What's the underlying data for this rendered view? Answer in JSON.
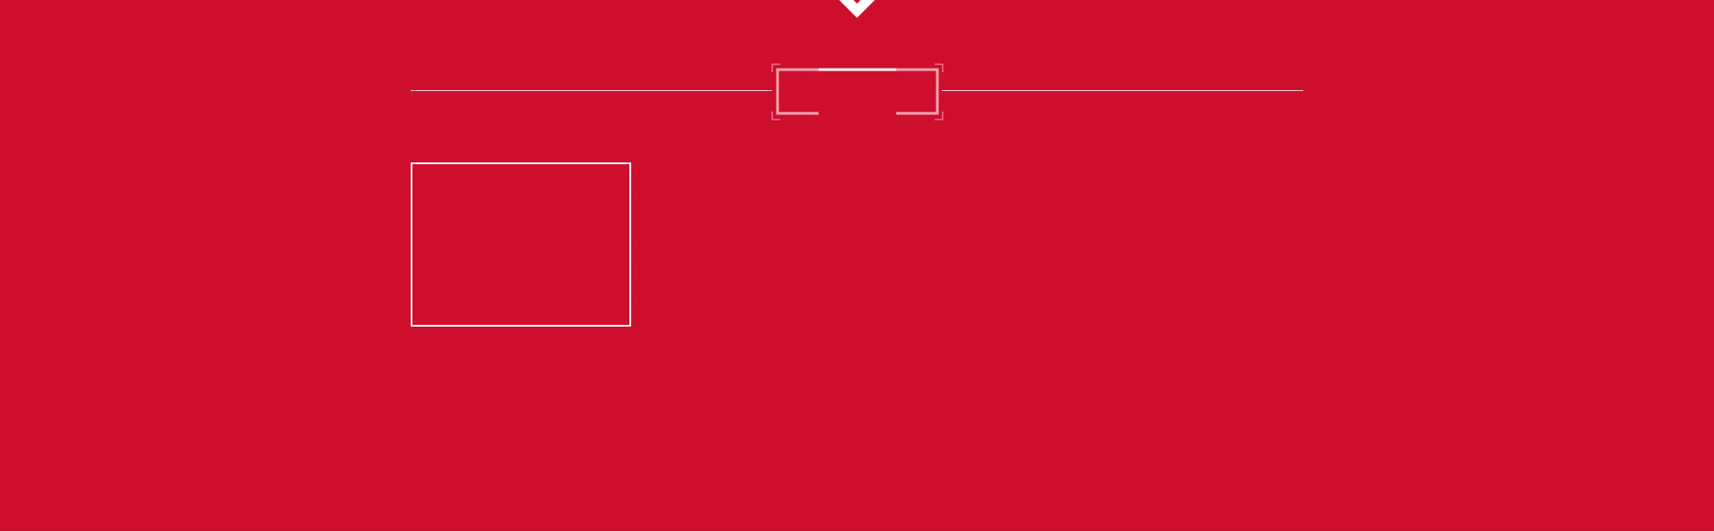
{
  "theme": {
    "background_color": "#d00f2d",
    "line_color": "#ffffff",
    "frame_accent_color": "#f5a3b0"
  },
  "header": {
    "marker_icon": "diamond-chevron-icon",
    "section_title": ""
  },
  "content": {
    "cards": [
      {
        "id": "card-1",
        "label": ""
      }
    ]
  }
}
